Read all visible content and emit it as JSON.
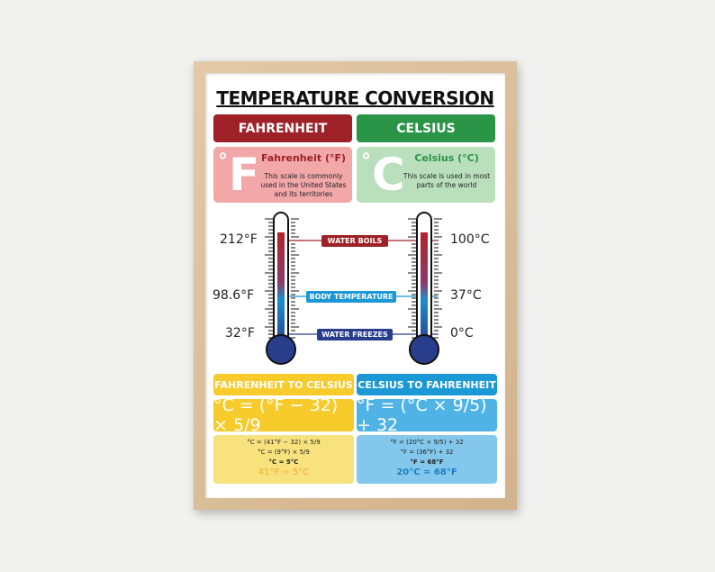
{
  "title": "TEMPERATURE CONVERSION",
  "fahrenheit": {
    "header": "FAHRENHEIT",
    "symbol": "F",
    "degree": "°",
    "name": "Fahrenheit (°F)",
    "description": "This scale is commonly used in the United States and its territories"
  },
  "celsius": {
    "header": "CELSIUS",
    "symbol": "C",
    "degree": "°",
    "name": "Celsius (°C)",
    "description": "This scale is used in most parts of the world"
  },
  "scale": {
    "boils": {
      "label": "WATER BOILS",
      "f": "212°F",
      "c": "100°C"
    },
    "body": {
      "label": "BODY TEMPERATURE",
      "f": "98.6°F",
      "c": "37°C"
    },
    "freezes": {
      "label": "WATER FREEZES",
      "f": "32°F",
      "c": "0°C"
    }
  },
  "f_to_c": {
    "header": "FAHRENHEIT TO CELSIUS",
    "formula": "°C = (°F − 32) × 5/9",
    "steps": [
      "°C = (41°F − 32) × 5/9",
      "°C = (9°F) × 5/9",
      "°C = 5°C"
    ],
    "result": "41°F = 5°C"
  },
  "c_to_f": {
    "header": "CELSIUS TO FAHRENHEIT",
    "formula": "°F = (°C × 9/5) + 32",
    "steps": [
      "°F = (20°C × 9/5) + 32",
      "°F = (36°F) + 32",
      "°F = 68°F"
    ],
    "result": "20°C = 68°F"
  },
  "colors": {
    "red": "#9e2128",
    "green": "#2a9447",
    "pink": "#f2a7a9",
    "lightgreen": "#b9dfbd",
    "yellow": "#f6cb2b",
    "lightyellow": "#f8e27e",
    "blue": "#1c98d5",
    "lightblue": "#83c8ec",
    "navy": "#283e8c"
  }
}
